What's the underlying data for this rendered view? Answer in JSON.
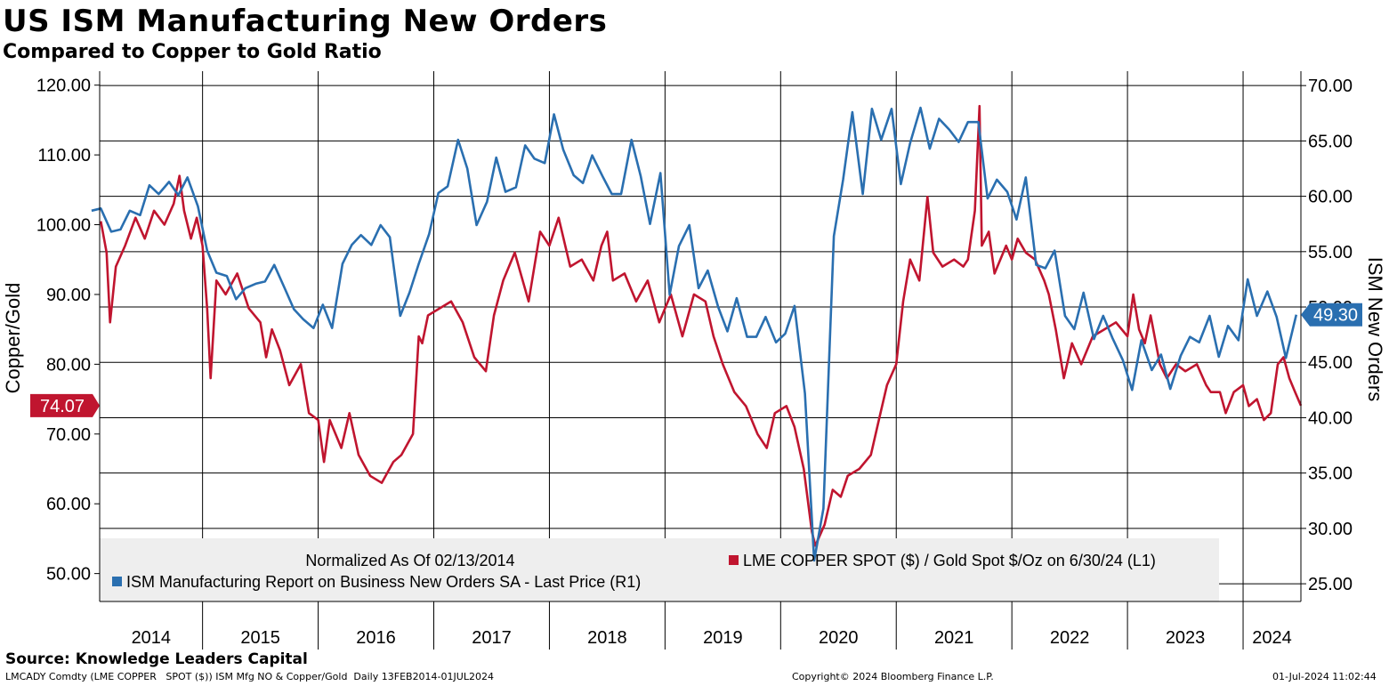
{
  "header": {
    "title": "US ISM Manufacturing New Orders",
    "subtitle": "Compared to Copper to Gold Ratio"
  },
  "footer": {
    "source": "Source: Knowledge Leaders Capital",
    "ticker_info": "LMCADY Comdty (LME COPPER   SPOT ($)) ISM Mfg NO & Copper/Gold  Daily 13FEB2014-01JUL2024",
    "copyright": "Copyright© 2024 Bloomberg Finance L.P.",
    "timestamp": "01-Jul-2024 11:02:44"
  },
  "colors": {
    "copper_gold": "#c0152f",
    "ism": "#2a6fb0"
  },
  "chart_data": {
    "type": "line",
    "x_range": [
      2014.11,
      2024.5
    ],
    "x_tick_labels": [
      "2014",
      "2015",
      "2016",
      "2017",
      "2018",
      "2019",
      "2020",
      "2021",
      "2022",
      "2023",
      "2024"
    ],
    "left_axis": {
      "label": "Copper/Gold",
      "range": [
        46,
        122
      ],
      "ticks": [
        50,
        60,
        70,
        80,
        90,
        100,
        110,
        120
      ],
      "tick_labels": [
        "50.00",
        "60.00",
        "70.00",
        "80.00",
        "90.00",
        "100.00",
        "110.00",
        "120.00"
      ],
      "last_value_label": "74.07",
      "last_value": 74.07
    },
    "right_axis": {
      "label": "ISM New Orders",
      "range": [
        23.4,
        71.3
      ],
      "ticks": [
        25,
        30,
        35,
        40,
        45,
        50,
        55,
        60,
        65,
        70
      ],
      "tick_labels": [
        "25.00",
        "30.00",
        "35.00",
        "40.00",
        "45.00",
        "50.00",
        "55.00",
        "60.00",
        "65.00",
        "70.00"
      ],
      "last_value_label": "49.30",
      "last_value": 49.3
    },
    "legend": {
      "position": "bottom",
      "note": "Normalized As Of 02/13/2014",
      "entries": [
        "LME COPPER SPOT ($) / Gold Spot $/Oz on 6/30/24 (L1)",
        "ISM Manufacturing Report on Business New Orders SA - Last Price (R1)"
      ]
    },
    "series": [
      {
        "name": "LME COPPER SPOT ($) / Gold Spot $/Oz on 6/30/24 (L1)",
        "axis": "left",
        "points": [
          [
            2014.12,
            100.5
          ],
          [
            2014.17,
            96
          ],
          [
            2014.2,
            86
          ],
          [
            2014.25,
            94
          ],
          [
            2014.33,
            97
          ],
          [
            2014.42,
            101
          ],
          [
            2014.5,
            98
          ],
          [
            2014.58,
            102
          ],
          [
            2014.67,
            100
          ],
          [
            2014.75,
            103
          ],
          [
            2014.8,
            107
          ],
          [
            2014.84,
            102
          ],
          [
            2014.9,
            98
          ],
          [
            2014.95,
            101
          ],
          [
            2015.0,
            97
          ],
          [
            2015.04,
            88
          ],
          [
            2015.07,
            78
          ],
          [
            2015.12,
            92
          ],
          [
            2015.2,
            90
          ],
          [
            2015.3,
            93
          ],
          [
            2015.4,
            88
          ],
          [
            2015.5,
            86
          ],
          [
            2015.55,
            81
          ],
          [
            2015.6,
            85
          ],
          [
            2015.67,
            82
          ],
          [
            2015.75,
            77
          ],
          [
            2015.85,
            80
          ],
          [
            2015.92,
            73
          ],
          [
            2016.0,
            72
          ],
          [
            2016.05,
            66
          ],
          [
            2016.1,
            72
          ],
          [
            2016.2,
            68
          ],
          [
            2016.27,
            73
          ],
          [
            2016.35,
            67
          ],
          [
            2016.45,
            64
          ],
          [
            2016.55,
            63
          ],
          [
            2016.65,
            66
          ],
          [
            2016.72,
            67
          ],
          [
            2016.82,
            70
          ],
          [
            2016.87,
            84
          ],
          [
            2016.9,
            83
          ],
          [
            2016.95,
            87
          ],
          [
            2017.05,
            88
          ],
          [
            2017.15,
            89
          ],
          [
            2017.25,
            86
          ],
          [
            2017.35,
            81
          ],
          [
            2017.45,
            79
          ],
          [
            2017.52,
            87
          ],
          [
            2017.6,
            92
          ],
          [
            2017.7,
            96
          ],
          [
            2017.82,
            89
          ],
          [
            2017.92,
            99
          ],
          [
            2018.0,
            97
          ],
          [
            2018.08,
            101
          ],
          [
            2018.18,
            94
          ],
          [
            2018.28,
            95
          ],
          [
            2018.38,
            92
          ],
          [
            2018.45,
            97
          ],
          [
            2018.5,
            99
          ],
          [
            2018.55,
            92
          ],
          [
            2018.65,
            93
          ],
          [
            2018.75,
            89
          ],
          [
            2018.85,
            92
          ],
          [
            2018.95,
            86
          ],
          [
            2019.05,
            90
          ],
          [
            2019.15,
            84
          ],
          [
            2019.25,
            90
          ],
          [
            2019.35,
            89
          ],
          [
            2019.42,
            84
          ],
          [
            2019.5,
            80
          ],
          [
            2019.6,
            76
          ],
          [
            2019.7,
            74
          ],
          [
            2019.8,
            70
          ],
          [
            2019.88,
            68
          ],
          [
            2019.95,
            73
          ],
          [
            2020.05,
            74
          ],
          [
            2020.12,
            71
          ],
          [
            2020.2,
            65
          ],
          [
            2020.27,
            56
          ],
          [
            2020.3,
            54
          ],
          [
            2020.38,
            57
          ],
          [
            2020.45,
            62
          ],
          [
            2020.52,
            61
          ],
          [
            2020.58,
            64
          ],
          [
            2020.68,
            65
          ],
          [
            2020.78,
            67
          ],
          [
            2020.85,
            72
          ],
          [
            2020.92,
            77
          ],
          [
            2021.0,
            80
          ],
          [
            2021.06,
            89
          ],
          [
            2021.12,
            95
          ],
          [
            2021.2,
            92
          ],
          [
            2021.27,
            104
          ],
          [
            2021.32,
            96
          ],
          [
            2021.4,
            94
          ],
          [
            2021.5,
            95
          ],
          [
            2021.58,
            94
          ],
          [
            2021.62,
            95
          ],
          [
            2021.68,
            102
          ],
          [
            2021.72,
            117
          ],
          [
            2021.74,
            97
          ],
          [
            2021.8,
            99
          ],
          [
            2021.85,
            93
          ],
          [
            2021.95,
            97
          ],
          [
            2022.0,
            95
          ],
          [
            2022.05,
            98
          ],
          [
            2022.12,
            96
          ],
          [
            2022.2,
            95
          ],
          [
            2022.28,
            92
          ],
          [
            2022.32,
            90
          ],
          [
            2022.38,
            85
          ],
          [
            2022.45,
            78
          ],
          [
            2022.52,
            83
          ],
          [
            2022.6,
            80
          ],
          [
            2022.7,
            84
          ],
          [
            2022.8,
            85
          ],
          [
            2022.9,
            86
          ],
          [
            2023.0,
            84
          ],
          [
            2023.05,
            90
          ],
          [
            2023.1,
            85
          ],
          [
            2023.15,
            83
          ],
          [
            2023.2,
            87
          ],
          [
            2023.28,
            80
          ],
          [
            2023.34,
            78
          ],
          [
            2023.42,
            80
          ],
          [
            2023.5,
            79
          ],
          [
            2023.6,
            80
          ],
          [
            2023.68,
            77
          ],
          [
            2023.72,
            76
          ],
          [
            2023.8,
            76
          ],
          [
            2023.85,
            73
          ],
          [
            2023.92,
            76
          ],
          [
            2024.0,
            77
          ],
          [
            2024.05,
            74
          ],
          [
            2024.12,
            75
          ],
          [
            2024.18,
            72
          ],
          [
            2024.24,
            73
          ],
          [
            2024.3,
            80
          ],
          [
            2024.35,
            81
          ],
          [
            2024.4,
            78
          ],
          [
            2024.45,
            76
          ],
          [
            2024.5,
            74.07
          ]
        ]
      },
      {
        "name": "ISM Manufacturing Report on Business New Orders SA - Last Price (R1)",
        "axis": "right",
        "points": [
          [
            2014.04,
            58.7
          ],
          [
            2014.12,
            58.9
          ],
          [
            2014.21,
            56.8
          ],
          [
            2014.29,
            57.0
          ],
          [
            2014.37,
            58.7
          ],
          [
            2014.46,
            58.3
          ],
          [
            2014.54,
            61.0
          ],
          [
            2014.62,
            60.2
          ],
          [
            2014.71,
            61.3
          ],
          [
            2014.79,
            60.1
          ],
          [
            2014.87,
            61.7
          ],
          [
            2014.96,
            59.1
          ],
          [
            2015.04,
            55.1
          ],
          [
            2015.12,
            53.1
          ],
          [
            2015.21,
            52.8
          ],
          [
            2015.29,
            50.7
          ],
          [
            2015.37,
            51.7
          ],
          [
            2015.46,
            52.1
          ],
          [
            2015.54,
            52.3
          ],
          [
            2015.62,
            53.8
          ],
          [
            2015.71,
            51.7
          ],
          [
            2015.79,
            49.8
          ],
          [
            2015.87,
            48.9
          ],
          [
            2015.96,
            48.1
          ],
          [
            2016.04,
            50.2
          ],
          [
            2016.12,
            48.1
          ],
          [
            2016.21,
            53.9
          ],
          [
            2016.29,
            55.6
          ],
          [
            2016.37,
            56.5
          ],
          [
            2016.46,
            55.6
          ],
          [
            2016.54,
            57.4
          ],
          [
            2016.62,
            56.3
          ],
          [
            2016.71,
            49.2
          ],
          [
            2016.79,
            51.3
          ],
          [
            2016.87,
            53.9
          ],
          [
            2016.96,
            56.6
          ],
          [
            2017.04,
            60.3
          ],
          [
            2017.12,
            60.9
          ],
          [
            2017.21,
            65.1
          ],
          [
            2017.29,
            62.5
          ],
          [
            2017.37,
            57.4
          ],
          [
            2017.46,
            59.5
          ],
          [
            2017.54,
            63.5
          ],
          [
            2017.62,
            60.4
          ],
          [
            2017.71,
            60.8
          ],
          [
            2017.79,
            64.6
          ],
          [
            2017.87,
            63.4
          ],
          [
            2017.96,
            63.0
          ],
          [
            2018.04,
            67.4
          ],
          [
            2018.12,
            64.2
          ],
          [
            2018.21,
            61.9
          ],
          [
            2018.29,
            61.2
          ],
          [
            2018.37,
            63.7
          ],
          [
            2018.46,
            61.8
          ],
          [
            2018.54,
            60.2
          ],
          [
            2018.62,
            60.2
          ],
          [
            2018.71,
            65.1
          ],
          [
            2018.79,
            61.8
          ],
          [
            2018.87,
            57.5
          ],
          [
            2018.96,
            62.1
          ],
          [
            2019.04,
            51.1
          ],
          [
            2019.12,
            55.5
          ],
          [
            2019.21,
            57.4
          ],
          [
            2019.29,
            51.7
          ],
          [
            2019.37,
            53.3
          ],
          [
            2019.46,
            50.0
          ],
          [
            2019.54,
            47.8
          ],
          [
            2019.62,
            50.8
          ],
          [
            2019.71,
            47.3
          ],
          [
            2019.79,
            47.3
          ],
          [
            2019.87,
            49.1
          ],
          [
            2019.96,
            46.8
          ],
          [
            2020.04,
            47.6
          ],
          [
            2020.12,
            50.1
          ],
          [
            2020.21,
            42.2
          ],
          [
            2020.29,
            27.1
          ],
          [
            2020.37,
            31.8
          ],
          [
            2020.46,
            56.4
          ],
          [
            2020.54,
            61.5
          ],
          [
            2020.62,
            67.6
          ],
          [
            2020.71,
            60.2
          ],
          [
            2020.79,
            67.9
          ],
          [
            2020.87,
            65.1
          ],
          [
            2020.96,
            67.9
          ],
          [
            2021.04,
            61.1
          ],
          [
            2021.12,
            64.8
          ],
          [
            2021.21,
            68.0
          ],
          [
            2021.29,
            64.3
          ],
          [
            2021.37,
            67.0
          ],
          [
            2021.46,
            66.0
          ],
          [
            2021.54,
            64.9
          ],
          [
            2021.62,
            66.7
          ],
          [
            2021.71,
            66.7
          ],
          [
            2021.79,
            59.8
          ],
          [
            2021.87,
            61.5
          ],
          [
            2021.96,
            60.4
          ],
          [
            2022.04,
            57.9
          ],
          [
            2022.12,
            61.7
          ],
          [
            2022.21,
            53.8
          ],
          [
            2022.29,
            53.5
          ],
          [
            2022.37,
            55.1
          ],
          [
            2022.46,
            49.2
          ],
          [
            2022.54,
            48.0
          ],
          [
            2022.62,
            51.3
          ],
          [
            2022.71,
            47.1
          ],
          [
            2022.79,
            49.2
          ],
          [
            2022.87,
            47.2
          ],
          [
            2022.96,
            45.2
          ],
          [
            2023.04,
            42.5
          ],
          [
            2023.12,
            47.0
          ],
          [
            2023.21,
            44.3
          ],
          [
            2023.29,
            45.7
          ],
          [
            2023.37,
            42.6
          ],
          [
            2023.46,
            45.6
          ],
          [
            2023.54,
            47.3
          ],
          [
            2023.62,
            46.8
          ],
          [
            2023.71,
            49.2
          ],
          [
            2023.79,
            45.5
          ],
          [
            2023.87,
            48.3
          ],
          [
            2023.96,
            47.0
          ],
          [
            2024.04,
            52.5
          ],
          [
            2024.12,
            49.2
          ],
          [
            2024.21,
            51.4
          ],
          [
            2024.29,
            49.1
          ],
          [
            2024.37,
            45.4
          ],
          [
            2024.46,
            49.3
          ]
        ]
      }
    ]
  }
}
